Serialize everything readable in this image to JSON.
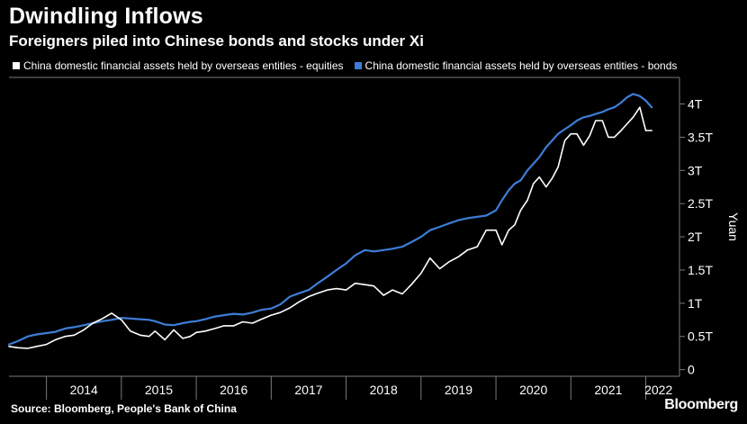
{
  "header": {
    "title": "Dwindling Inflows",
    "subtitle": "Foreigners piled into Chinese bonds and stocks under Xi"
  },
  "footer": {
    "source": "Source: Bloomberg, People's Bank of China",
    "brand": "Bloomberg"
  },
  "colors": {
    "background": "#000000",
    "equities": "#ffffff",
    "bonds": "#3d7dd6",
    "grid": "#3a3a3a",
    "axis": "#7a7a7a"
  },
  "chart_data": {
    "type": "line",
    "title": "Dwindling Inflows",
    "subtitle": "Foreigners piled into Chinese bonds and stocks under Xi",
    "xlabel": "",
    "ylabel": "Yuan",
    "x_tick_labels": [
      "2014",
      "2015",
      "2016",
      "2017",
      "2018",
      "2019",
      "2020",
      "2021",
      "2022"
    ],
    "y_ticks": [
      0,
      0.5,
      1,
      1.5,
      2,
      2.5,
      3,
      3.5,
      4
    ],
    "y_tick_labels": [
      "0",
      "0.5T",
      "1T",
      "1.5T",
      "2T",
      "2.5T",
      "3T",
      "3.5T",
      "4T"
    ],
    "xlim": [
      2013.5,
      2022.33
    ],
    "ylim": [
      -0.1,
      4.4
    ],
    "grid": false,
    "y_axis_position": "right",
    "legend_position": "top-left",
    "series": [
      {
        "name": "China domestic financial assets held by overseas entities - equities",
        "color": "#ffffff",
        "x": [
          2013.5,
          2013.62,
          2013.75,
          2013.87,
          2014.0,
          2014.12,
          2014.25,
          2014.37,
          2014.5,
          2014.62,
          2014.75,
          2014.87,
          2015.0,
          2015.12,
          2015.25,
          2015.37,
          2015.45,
          2015.58,
          2015.7,
          2015.82,
          2015.92,
          2016.0,
          2016.12,
          2016.25,
          2016.37,
          2016.5,
          2016.62,
          2016.75,
          2016.87,
          2017.0,
          2017.12,
          2017.25,
          2017.37,
          2017.5,
          2017.62,
          2017.75,
          2017.87,
          2018.0,
          2018.12,
          2018.25,
          2018.37,
          2018.5,
          2018.62,
          2018.75,
          2018.87,
          2019.0,
          2019.12,
          2019.25,
          2019.37,
          2019.5,
          2019.62,
          2019.75,
          2019.87,
          2020.0,
          2020.08,
          2020.17,
          2020.25,
          2020.33,
          2020.42,
          2020.5,
          2020.58,
          2020.67,
          2020.75,
          2020.83,
          2020.92,
          2021.0,
          2021.08,
          2021.17,
          2021.25,
          2021.33,
          2021.42,
          2021.5,
          2021.58,
          2021.67,
          2021.75,
          2021.83,
          2021.92,
          2022.0,
          2022.08
        ],
        "values": [
          0.35,
          0.33,
          0.32,
          0.35,
          0.38,
          0.45,
          0.5,
          0.52,
          0.6,
          0.7,
          0.77,
          0.85,
          0.75,
          0.58,
          0.52,
          0.5,
          0.58,
          0.45,
          0.6,
          0.47,
          0.5,
          0.56,
          0.58,
          0.62,
          0.66,
          0.66,
          0.72,
          0.7,
          0.76,
          0.82,
          0.86,
          0.93,
          1.02,
          1.1,
          1.15,
          1.2,
          1.22,
          1.2,
          1.3,
          1.28,
          1.26,
          1.12,
          1.2,
          1.14,
          1.28,
          1.45,
          1.68,
          1.52,
          1.62,
          1.7,
          1.8,
          1.85,
          2.1,
          2.1,
          1.88,
          2.1,
          2.18,
          2.4,
          2.55,
          2.8,
          2.9,
          2.75,
          2.88,
          3.05,
          3.45,
          3.55,
          3.55,
          3.38,
          3.52,
          3.75,
          3.75,
          3.5,
          3.5,
          3.6,
          3.7,
          3.8,
          3.95,
          3.6,
          3.6
        ]
      },
      {
        "name": "China domestic financial assets held by overseas entities - bonds",
        "color": "#3d7dd6",
        "x": [
          2013.5,
          2013.62,
          2013.75,
          2013.87,
          2014.0,
          2014.12,
          2014.25,
          2014.37,
          2014.5,
          2014.62,
          2014.75,
          2014.87,
          2015.0,
          2015.12,
          2015.25,
          2015.37,
          2015.45,
          2015.58,
          2015.7,
          2015.82,
          2015.92,
          2016.0,
          2016.12,
          2016.25,
          2016.37,
          2016.5,
          2016.62,
          2016.75,
          2016.87,
          2017.0,
          2017.12,
          2017.25,
          2017.37,
          2017.5,
          2017.62,
          2017.75,
          2017.87,
          2018.0,
          2018.12,
          2018.25,
          2018.37,
          2018.5,
          2018.62,
          2018.75,
          2018.87,
          2019.0,
          2019.12,
          2019.25,
          2019.37,
          2019.5,
          2019.62,
          2019.75,
          2019.87,
          2020.0,
          2020.08,
          2020.17,
          2020.25,
          2020.33,
          2020.42,
          2020.5,
          2020.58,
          2020.67,
          2020.75,
          2020.83,
          2020.92,
          2021.0,
          2021.08,
          2021.17,
          2021.25,
          2021.33,
          2021.42,
          2021.5,
          2021.58,
          2021.67,
          2021.75,
          2021.83,
          2021.92,
          2022.0,
          2022.08
        ],
        "values": [
          0.38,
          0.43,
          0.5,
          0.53,
          0.55,
          0.57,
          0.62,
          0.64,
          0.67,
          0.7,
          0.73,
          0.75,
          0.78,
          0.77,
          0.76,
          0.75,
          0.73,
          0.68,
          0.67,
          0.7,
          0.72,
          0.73,
          0.76,
          0.8,
          0.82,
          0.84,
          0.83,
          0.86,
          0.9,
          0.92,
          0.98,
          1.1,
          1.15,
          1.2,
          1.3,
          1.4,
          1.5,
          1.6,
          1.72,
          1.8,
          1.78,
          1.8,
          1.82,
          1.85,
          1.92,
          2.0,
          2.1,
          2.15,
          2.2,
          2.25,
          2.28,
          2.3,
          2.32,
          2.4,
          2.55,
          2.7,
          2.8,
          2.85,
          3.0,
          3.1,
          3.2,
          3.35,
          3.45,
          3.55,
          3.62,
          3.68,
          3.75,
          3.8,
          3.82,
          3.85,
          3.88,
          3.92,
          3.95,
          4.02,
          4.1,
          4.15,
          4.12,
          4.05,
          3.95
        ]
      }
    ]
  }
}
